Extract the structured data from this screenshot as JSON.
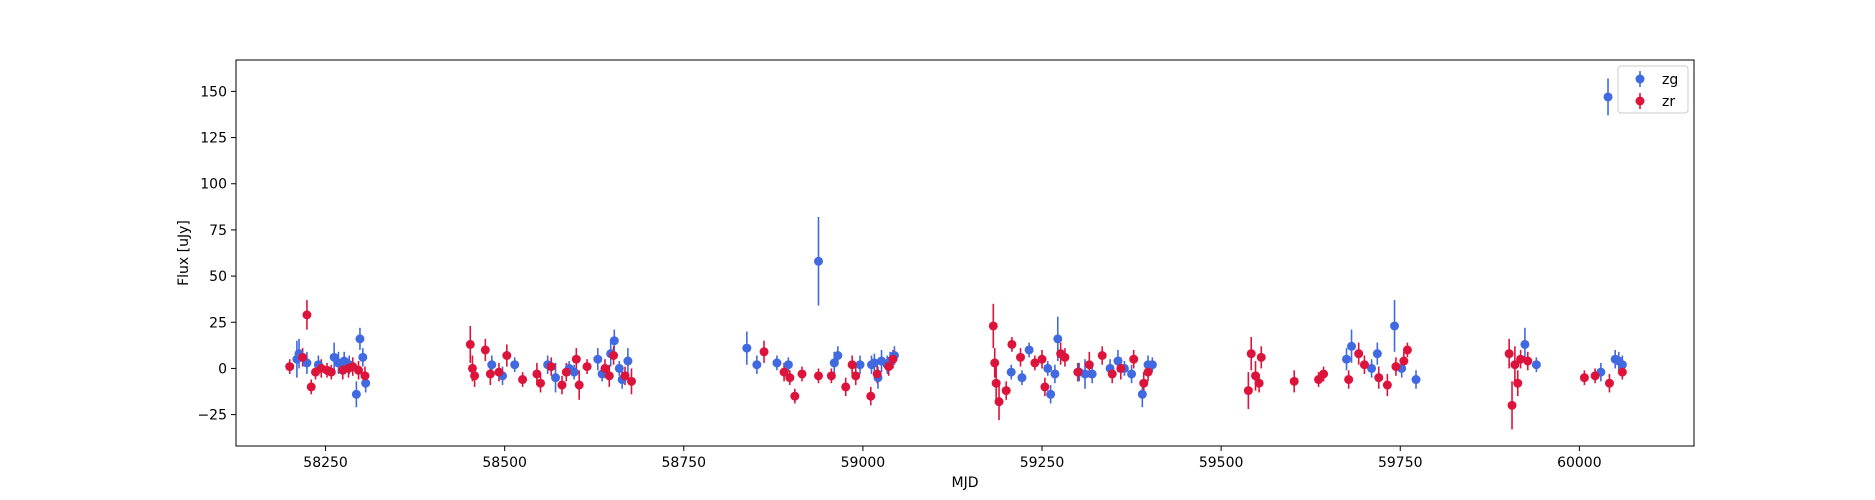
{
  "chart_data": {
    "type": "scatter",
    "title": "",
    "xlabel": "MJD",
    "ylabel": "Flux [uJy]",
    "xlim": [
      58125,
      60160
    ],
    "ylim": [
      -42,
      167
    ],
    "xticks": [
      58250,
      58500,
      58750,
      59000,
      59250,
      59500,
      59750,
      60000
    ],
    "yticks": [
      -25,
      0,
      25,
      50,
      75,
      100,
      125,
      150
    ],
    "grid": false,
    "legend_position": "top-right",
    "series": [
      {
        "name": "zg",
        "color": "#4169e1",
        "points": [
          [
            58210,
            5,
            10
          ],
          [
            58213,
            8,
            8
          ],
          [
            58224,
            3,
            6
          ],
          [
            58240,
            2,
            5
          ],
          [
            58262,
            6,
            8
          ],
          [
            58268,
            3,
            6
          ],
          [
            58276,
            4,
            5
          ],
          [
            58283,
            2,
            5
          ],
          [
            58293,
            -14,
            7
          ],
          [
            58298,
            16,
            6
          ],
          [
            58302,
            6,
            5
          ],
          [
            58306,
            -8,
            5
          ],
          [
            58482,
            2,
            5
          ],
          [
            58497,
            -4,
            5
          ],
          [
            58514,
            2,
            4
          ],
          [
            58560,
            2,
            5
          ],
          [
            58571,
            -5,
            8
          ],
          [
            58590,
            0,
            4
          ],
          [
            58597,
            -2,
            4
          ],
          [
            58630,
            5,
            6
          ],
          [
            58636,
            -3,
            4
          ],
          [
            58648,
            8,
            7
          ],
          [
            58653,
            15,
            6
          ],
          [
            58660,
            0,
            4
          ],
          [
            58664,
            -6,
            5
          ],
          [
            58672,
            4,
            7
          ],
          [
            58838,
            11,
            9
          ],
          [
            58852,
            2,
            5
          ],
          [
            58880,
            3,
            4
          ],
          [
            58896,
            2,
            4
          ],
          [
            58938,
            58,
            24
          ],
          [
            58960,
            3,
            6
          ],
          [
            58965,
            7,
            5
          ],
          [
            58996,
            2,
            5
          ],
          [
            59012,
            2,
            5
          ],
          [
            59016,
            3,
            5
          ],
          [
            59021,
            -5,
            6
          ],
          [
            59026,
            4,
            6
          ],
          [
            59034,
            2,
            5
          ],
          [
            59038,
            4,
            5
          ],
          [
            59044,
            7,
            5
          ],
          [
            59207,
            -2,
            4
          ],
          [
            59222,
            -5,
            4
          ],
          [
            59232,
            10,
            4
          ],
          [
            59258,
            0,
            4
          ],
          [
            59262,
            -14,
            5
          ],
          [
            59268,
            -3,
            5
          ],
          [
            59272,
            16,
            12
          ],
          [
            59302,
            -2,
            5
          ],
          [
            59310,
            -3,
            8
          ],
          [
            59320,
            -3,
            5
          ],
          [
            59345,
            0,
            5
          ],
          [
            59356,
            4,
            6
          ],
          [
            59365,
            0,
            4
          ],
          [
            59375,
            -3,
            5
          ],
          [
            59390,
            -14,
            7
          ],
          [
            59398,
            2,
            5
          ],
          [
            59404,
            2,
            4
          ],
          [
            59675,
            5,
            6
          ],
          [
            59682,
            12,
            9
          ],
          [
            59710,
            0,
            5
          ],
          [
            59718,
            8,
            6
          ],
          [
            59742,
            23,
            14
          ],
          [
            59752,
            0,
            5
          ],
          [
            59772,
            -6,
            5
          ],
          [
            59924,
            13,
            9
          ],
          [
            59940,
            2,
            4
          ],
          [
            60030,
            -2,
            5
          ],
          [
            60040,
            147,
            10
          ],
          [
            60050,
            5,
            5
          ],
          [
            60055,
            4,
            5
          ],
          [
            60060,
            2,
            5
          ]
        ]
      },
      {
        "name": "zr",
        "color": "#dc143c",
        "points": [
          [
            58200,
            1,
            4
          ],
          [
            58218,
            6,
            5
          ],
          [
            58224,
            29,
            8
          ],
          [
            58230,
            -10,
            4
          ],
          [
            58236,
            -2,
            4
          ],
          [
            58244,
            0,
            5
          ],
          [
            58252,
            -1,
            4
          ],
          [
            58258,
            -2,
            4
          ],
          [
            58274,
            -1,
            5
          ],
          [
            58282,
            0,
            5
          ],
          [
            58288,
            1,
            5
          ],
          [
            58296,
            -1,
            5
          ],
          [
            58305,
            -4,
            5
          ],
          [
            58452,
            13,
            10
          ],
          [
            58455,
            0,
            7
          ],
          [
            58458,
            -4,
            6
          ],
          [
            58473,
            10,
            6
          ],
          [
            58480,
            -3,
            6
          ],
          [
            58492,
            -2,
            5
          ],
          [
            58503,
            7,
            6
          ],
          [
            58525,
            -6,
            4
          ],
          [
            58545,
            -3,
            6
          ],
          [
            58550,
            -8,
            5
          ],
          [
            58565,
            1,
            5
          ],
          [
            58580,
            -9,
            5
          ],
          [
            58586,
            -2,
            5
          ],
          [
            58600,
            5,
            6
          ],
          [
            58604,
            -9,
            8
          ],
          [
            58615,
            1,
            4
          ],
          [
            58640,
            0,
            5
          ],
          [
            58646,
            -4,
            6
          ],
          [
            58652,
            7,
            5
          ],
          [
            58668,
            -4,
            5
          ],
          [
            58677,
            -7,
            7
          ],
          [
            58862,
            9,
            6
          ],
          [
            58890,
            -2,
            5
          ],
          [
            58898,
            -5,
            4
          ],
          [
            58905,
            -15,
            4
          ],
          [
            58915,
            -3,
            4
          ],
          [
            58938,
            -4,
            4
          ],
          [
            58956,
            -4,
            4
          ],
          [
            58976,
            -10,
            5
          ],
          [
            58985,
            2,
            5
          ],
          [
            58990,
            -4,
            5
          ],
          [
            59011,
            -15,
            5
          ],
          [
            59020,
            -3,
            5
          ],
          [
            59036,
            1,
            5
          ],
          [
            59042,
            5,
            5
          ],
          [
            59182,
            23,
            12
          ],
          [
            59184,
            3,
            8
          ],
          [
            59186,
            -8,
            10
          ],
          [
            59190,
            -18,
            10
          ],
          [
            59200,
            -12,
            5
          ],
          [
            59208,
            13,
            4
          ],
          [
            59220,
            6,
            5
          ],
          [
            59240,
            3,
            4
          ],
          [
            59250,
            5,
            5
          ],
          [
            59254,
            -10,
            5
          ],
          [
            59276,
            8,
            6
          ],
          [
            59282,
            6,
            5
          ],
          [
            59300,
            -2,
            5
          ],
          [
            59316,
            2,
            7
          ],
          [
            59334,
            7,
            5
          ],
          [
            59348,
            -3,
            5
          ],
          [
            59360,
            0,
            6
          ],
          [
            59378,
            5,
            5
          ],
          [
            59392,
            -8,
            6
          ],
          [
            59398,
            -2,
            5
          ],
          [
            59538,
            -12,
            10
          ],
          [
            59542,
            8,
            9
          ],
          [
            59548,
            -4,
            8
          ],
          [
            59553,
            -8,
            5
          ],
          [
            59556,
            6,
            6
          ],
          [
            59602,
            -7,
            6
          ],
          [
            59636,
            -6,
            4
          ],
          [
            59643,
            -3,
            4
          ],
          [
            59678,
            -6,
            5
          ],
          [
            59692,
            8,
            6
          ],
          [
            59700,
            2,
            5
          ],
          [
            59720,
            -5,
            6
          ],
          [
            59732,
            -9,
            6
          ],
          [
            59744,
            1,
            5
          ],
          [
            59755,
            4,
            5
          ],
          [
            59760,
            10,
            4
          ],
          [
            59902,
            8,
            8
          ],
          [
            59906,
            -20,
            13
          ],
          [
            59910,
            2,
            10
          ],
          [
            59914,
            -8,
            7
          ],
          [
            59918,
            5,
            5
          ],
          [
            59928,
            4,
            5
          ],
          [
            60007,
            -5,
            4
          ],
          [
            60022,
            -4,
            4
          ],
          [
            60042,
            -8,
            5
          ],
          [
            60060,
            -2,
            4
          ]
        ]
      }
    ]
  }
}
